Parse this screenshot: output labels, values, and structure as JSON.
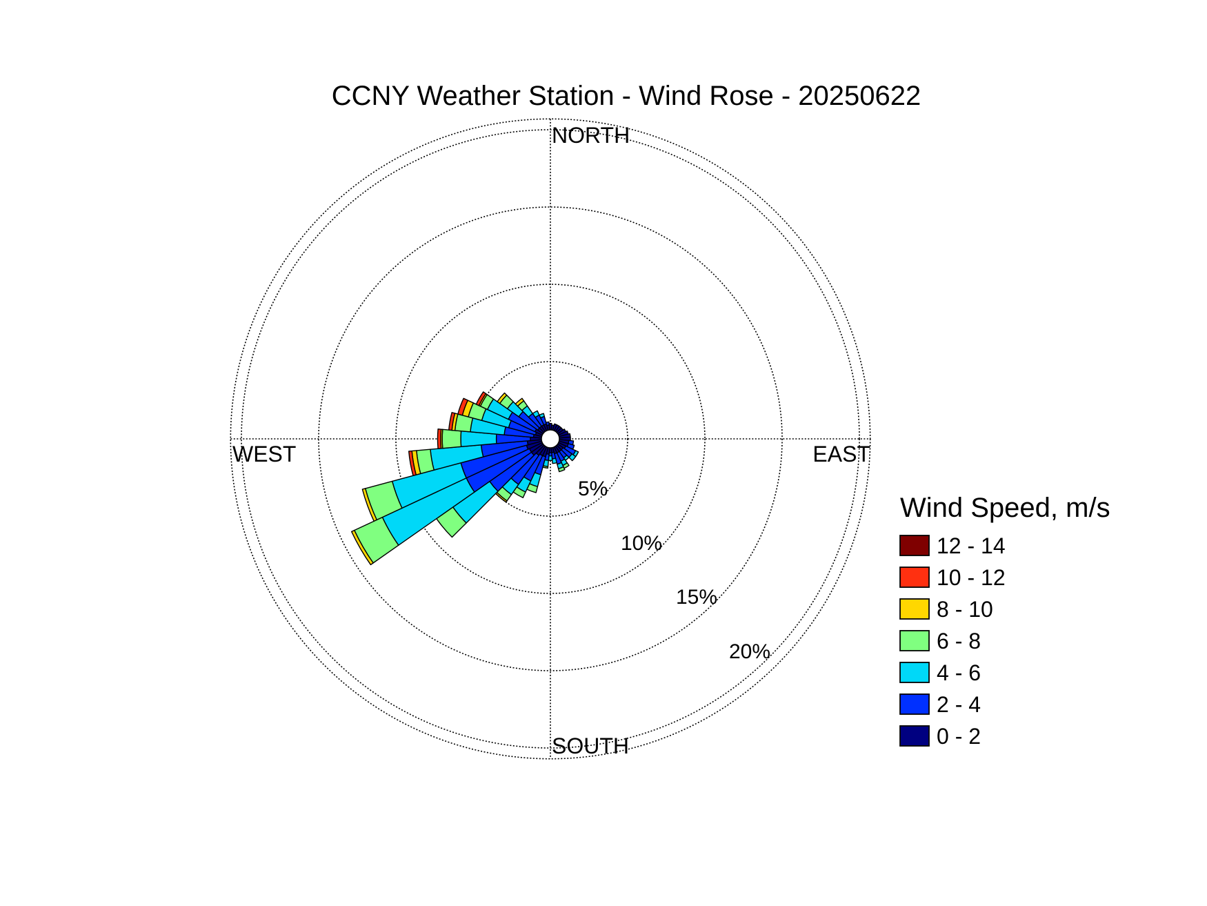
{
  "chart_data": {
    "type": "wind-rose",
    "title": "CCNY Weather Station - Wind Rose - 20250622",
    "direction_labels": [
      "NORTH",
      "EAST",
      "SOUTH",
      "WEST"
    ],
    "radial_axis": {
      "unit": "%",
      "ticks": [
        5,
        10,
        15,
        20
      ],
      "tick_labels": [
        "5%",
        "10%",
        "15%",
        "20%"
      ],
      "max": 20.7
    },
    "grid": true,
    "calm_circle": true,
    "legend": {
      "title": "Wind Speed, m/s",
      "placement": "right",
      "bins": [
        {
          "label": "12 - 14",
          "color": "#7f0000"
        },
        {
          "label": "10 - 12",
          "color": "#ff3010"
        },
        {
          "label": "8 - 10",
          "color": "#ffd700"
        },
        {
          "label": "6 - 8",
          "color": "#80ff80"
        },
        {
          "label": "4 - 6",
          "color": "#00d8f8"
        },
        {
          "label": "2 - 4",
          "color": "#0030ff"
        },
        {
          "label": "0 - 2",
          "color": "#000080"
        }
      ]
    },
    "speed_bins": [
      "0 - 2",
      "2 - 4",
      "4 - 6",
      "6 - 8",
      "8 - 10",
      "10 - 12",
      "12 - 14"
    ],
    "sector_width_deg": 10,
    "sectors": [
      {
        "direction_deg": 0,
        "cumulative": [
          1.0
        ]
      },
      {
        "direction_deg": 10,
        "cumulative": [
          0.9
        ]
      },
      {
        "direction_deg": 20,
        "cumulative": [
          1.0
        ]
      },
      {
        "direction_deg": 30,
        "cumulative": [
          1.0
        ]
      },
      {
        "direction_deg": 40,
        "cumulative": [
          1.0
        ]
      },
      {
        "direction_deg": 50,
        "cumulative": [
          1.0
        ]
      },
      {
        "direction_deg": 60,
        "cumulative": [
          1.1
        ]
      },
      {
        "direction_deg": 70,
        "cumulative": [
          1.2
        ]
      },
      {
        "direction_deg": 80,
        "cumulative": [
          1.3
        ]
      },
      {
        "direction_deg": 90,
        "cumulative": [
          1.3
        ]
      },
      {
        "direction_deg": 100,
        "cumulative": [
          1.2,
          1.5
        ]
      },
      {
        "direction_deg": 110,
        "cumulative": [
          1.2,
          1.6
        ]
      },
      {
        "direction_deg": 120,
        "cumulative": [
          1.1,
          1.8,
          2.0
        ]
      },
      {
        "direction_deg": 130,
        "cumulative": [
          1.0,
          1.7,
          2.0
        ]
      },
      {
        "direction_deg": 140,
        "cumulative": [
          1.0,
          1.5,
          1.7
        ]
      },
      {
        "direction_deg": 150,
        "cumulative": [
          1.0,
          1.6,
          1.9,
          2.1
        ]
      },
      {
        "direction_deg": 160,
        "cumulative": [
          1.0,
          1.7,
          2.0,
          2.2
        ]
      },
      {
        "direction_deg": 170,
        "cumulative": [
          0.9,
          1.3,
          1.6
        ]
      },
      {
        "direction_deg": 180,
        "cumulative": [
          0.9,
          1.1,
          1.4
        ]
      },
      {
        "direction_deg": 190,
        "cumulative": [
          1.0,
          1.4,
          1.8,
          1.9
        ]
      },
      {
        "direction_deg": 200,
        "cumulative": [
          1.2,
          2.4,
          3.2,
          3.6
        ]
      },
      {
        "direction_deg": 210,
        "cumulative": [
          1.2,
          3.0,
          3.8,
          4.2
        ]
      },
      {
        "direction_deg": 220,
        "cumulative": [
          1.3,
          3.6,
          4.4,
          4.9,
          5.0
        ]
      },
      {
        "direction_deg": 230,
        "cumulative": [
          1.5,
          4.8,
          7.7,
          9.0
        ]
      },
      {
        "direction_deg": 240,
        "cumulative": [
          1.5,
          6.0,
          12.0,
          14.0,
          14.2
        ]
      },
      {
        "direction_deg": 250,
        "cumulative": [
          1.6,
          6.0,
          10.6,
          12.4,
          12.6
        ]
      },
      {
        "direction_deg": 260,
        "cumulative": [
          1.5,
          4.5,
          7.8,
          8.7,
          9.0,
          9.2
        ]
      },
      {
        "direction_deg": 270,
        "cumulative": [
          1.3,
          3.5,
          5.8,
          7.0,
          7.1,
          7.3
        ]
      },
      {
        "direction_deg": 280,
        "cumulative": [
          1.1,
          3.0,
          5.2,
          6.2,
          6.4,
          6.6
        ]
      },
      {
        "direction_deg": 290,
        "cumulative": [
          1.0,
          2.8,
          4.6,
          5.5,
          5.9,
          6.2
        ]
      },
      {
        "direction_deg": 300,
        "cumulative": [
          1.1,
          3.0,
          4.5,
          5.0,
          5.1,
          5.3
        ]
      },
      {
        "direction_deg": 310,
        "cumulative": [
          1.0,
          2.5,
          3.4,
          4.0,
          4.2
        ]
      },
      {
        "direction_deg": 320,
        "cumulative": [
          1.0,
          2.0,
          2.6,
          3.0,
          3.2
        ]
      },
      {
        "direction_deg": 330,
        "cumulative": [
          1.0,
          1.7,
          2.0
        ]
      },
      {
        "direction_deg": 340,
        "cumulative": [
          1.0,
          1.5,
          1.7
        ]
      },
      {
        "direction_deg": 350,
        "cumulative": [
          0.9,
          1.1
        ]
      }
    ]
  }
}
